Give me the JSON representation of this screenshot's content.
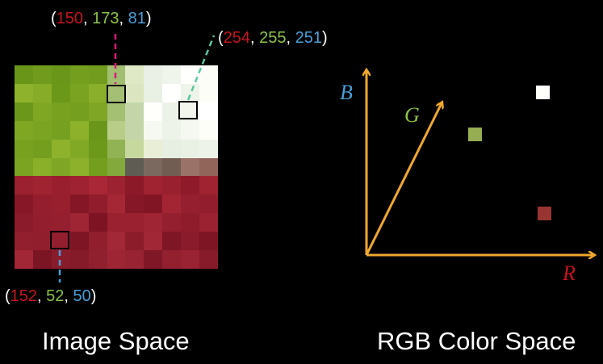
{
  "samples": [
    {
      "r": "150",
      "g": "173",
      "b": "81",
      "swatch": "#96AD51"
    },
    {
      "r": "254",
      "g": "255",
      "b": "251",
      "swatch": "#FEFFFB"
    },
    {
      "r": "152",
      "g": "52",
      "b": "50",
      "swatch": "#983432"
    }
  ],
  "sep": ", ",
  "open": "(",
  "close": ")",
  "axes": {
    "r": "R",
    "g": "G",
    "b": "B"
  },
  "captions": {
    "image": "Image Space",
    "rgb": "RGB Color Space"
  },
  "colors": {
    "red_text": "#C4161C",
    "green_text": "#8BC34A",
    "blue_text": "#4A9FD8",
    "axis": "#F0A830",
    "leader_pink": "#D81B7A",
    "leader_teal": "#5CC6A0",
    "leader_blue": "#4A9FD8"
  }
}
